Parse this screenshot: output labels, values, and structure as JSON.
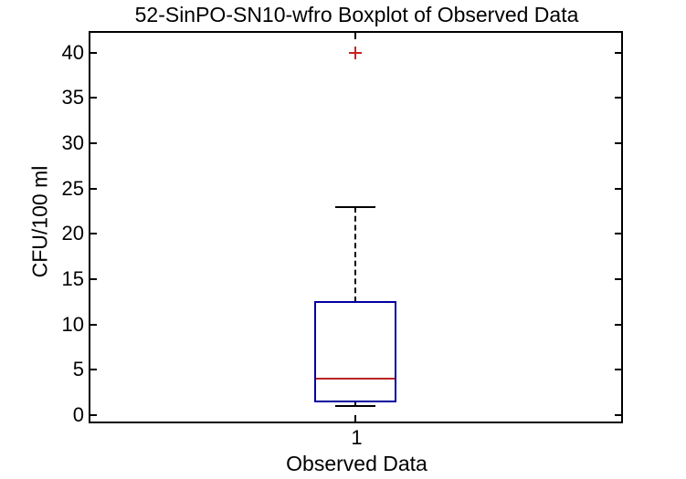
{
  "window": {
    "background": "#ffffff"
  },
  "chart_data": {
    "type": "boxplot",
    "title": "52-SinPO-SN10-wfro Boxplot of Observed Data",
    "xlabel": "Observed Data",
    "ylabel": "CFU/100 ml",
    "categories": [
      "1"
    ],
    "yticks": [
      0,
      5,
      10,
      15,
      20,
      25,
      30,
      35,
      40
    ],
    "ylim": [
      -0.8,
      42.3
    ],
    "grid": false,
    "legend": "none",
    "series": [
      {
        "name": "1",
        "lower_whisker": 1,
        "q1": 1.5,
        "median": 4,
        "q3": 12.5,
        "upper_whisker": 23,
        "outliers": [
          40
        ]
      }
    ],
    "colors": {
      "box": "#0000A0",
      "median": "#BB2222",
      "outlier": "#CC2020",
      "whisker": "#000000",
      "axis": "#000000",
      "text": "#000000"
    }
  }
}
